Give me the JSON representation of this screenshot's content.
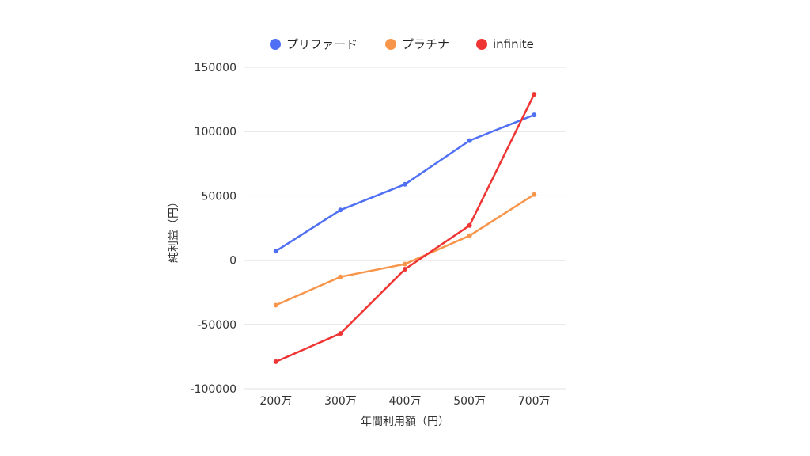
{
  "chart_data": {
    "type": "line",
    "title": "",
    "xlabel": "年間利用額（円）",
    "ylabel": "純利益（円）",
    "categories": [
      "200万",
      "300万",
      "400万",
      "500万",
      "700万"
    ],
    "ylim": [
      -100000,
      150000
    ],
    "yticks": [
      150000,
      100000,
      50000,
      0,
      -50000,
      -100000
    ],
    "ytick_labels": [
      "150000",
      "100000",
      "50000",
      "0",
      "-50000",
      "-100000"
    ],
    "grid": true,
    "legend_position": "top",
    "series": [
      {
        "name": "プリファード",
        "color": "#4f6ff5",
        "values": [
          7000,
          39000,
          59000,
          93000,
          113000
        ]
      },
      {
        "name": "プラチナ",
        "color": "#f7954b",
        "values": [
          -35000,
          -13000,
          -3000,
          19000,
          51000
        ]
      },
      {
        "name": "infinite",
        "color": "#ef3434",
        "values": [
          -79000,
          -57000,
          -7000,
          27000,
          129000
        ]
      }
    ]
  }
}
